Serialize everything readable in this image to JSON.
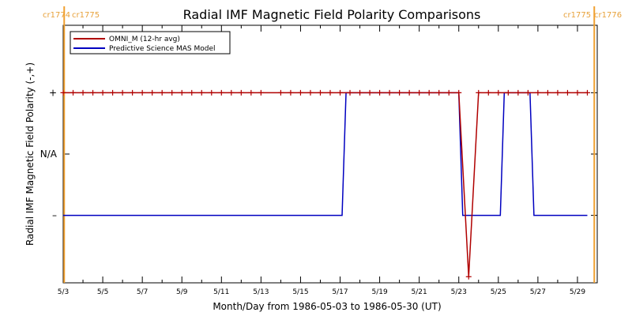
{
  "chart_data": {
    "type": "line",
    "title": "Radial IMF Magnetic Field Polarity Comparisons",
    "xlabel": "Month/Day from 1986-05-03 to 1986-05-30 (UT)",
    "ylabel": "Radial IMF Magnetic Field Polarity (-,+)",
    "x_ticks": [
      "5/3",
      "5/5",
      "5/7",
      "5/9",
      "5/11",
      "5/13",
      "5/15",
      "5/17",
      "5/19",
      "5/21",
      "5/23",
      "5/25",
      "5/27",
      "5/29"
    ],
    "x_tick_days": [
      0,
      2,
      4,
      6,
      8,
      10,
      12,
      14,
      16,
      18,
      20,
      22,
      24,
      26
    ],
    "xlim_days": [
      0,
      27
    ],
    "y_ticks": [
      {
        "label": "+",
        "value": 1
      },
      {
        "label": "N/A",
        "value": 0
      },
      {
        "label": "–",
        "value": -1
      }
    ],
    "ylim": [
      -2.1,
      2.1
    ],
    "legend_position": "top-left",
    "series": [
      {
        "name": "OMNI_M (12-hr avg)",
        "color": "#b00000",
        "marker": "+",
        "x_days": [
          0.0,
          0.5,
          1.0,
          1.5,
          2.0,
          2.5,
          3.0,
          3.5,
          4.0,
          4.5,
          5.0,
          5.5,
          6.0,
          6.5,
          7.0,
          7.5,
          8.0,
          8.5,
          9.0,
          9.5,
          10.0,
          10.5,
          11.0,
          11.5,
          12.0,
          12.5,
          13.0,
          13.5,
          14.0,
          14.5,
          15.0,
          15.5,
          16.0,
          16.5,
          17.0,
          17.5,
          18.0,
          18.5,
          19.0,
          19.5,
          20.0,
          20.5,
          21.0,
          21.5,
          22.0,
          22.5,
          23.0,
          23.5,
          24.0,
          24.5,
          25.0,
          25.5,
          26.0,
          26.5
        ],
        "values": [
          1,
          1,
          1,
          1,
          1,
          1,
          1,
          1,
          1,
          1,
          1,
          1,
          1,
          1,
          1,
          1,
          1,
          1,
          1,
          1,
          1,
          1,
          1,
          1,
          1,
          1,
          1,
          1,
          1,
          1,
          1,
          1,
          1,
          1,
          1,
          1,
          1,
          1,
          1,
          1,
          1,
          -2,
          1,
          1,
          1,
          1,
          1,
          1,
          1,
          1,
          1,
          1,
          1,
          1
        ],
        "plotted": [
          true,
          true,
          true,
          true,
          true,
          true,
          true,
          true,
          true,
          true,
          true,
          true,
          true,
          true,
          true,
          true,
          true,
          true,
          true,
          true,
          true,
          false,
          true,
          true,
          true,
          true,
          true,
          true,
          true,
          true,
          true,
          true,
          true,
          true,
          true,
          true,
          true,
          true,
          true,
          true,
          true,
          true,
          true,
          true,
          true,
          true,
          true,
          true,
          true,
          true,
          true,
          true,
          true,
          true
        ]
      },
      {
        "name": "Predictive Science MAS Model",
        "color": "#0000c0",
        "x_days": [
          0.0,
          14.1,
          14.3,
          20.0,
          20.2,
          22.1,
          22.3,
          23.6,
          23.8,
          26.5
        ],
        "values": [
          -1,
          -1,
          1,
          1,
          -1,
          -1,
          1,
          1,
          -1,
          -1
        ]
      }
    ],
    "carrington_markers": [
      {
        "day": 0.05,
        "left_label": "cr1774",
        "right_label": "cr1775"
      },
      {
        "day": 26.85,
        "left_label": "cr1775",
        "right_label": "cr1776"
      }
    ],
    "marker_color": "#f0a030"
  }
}
